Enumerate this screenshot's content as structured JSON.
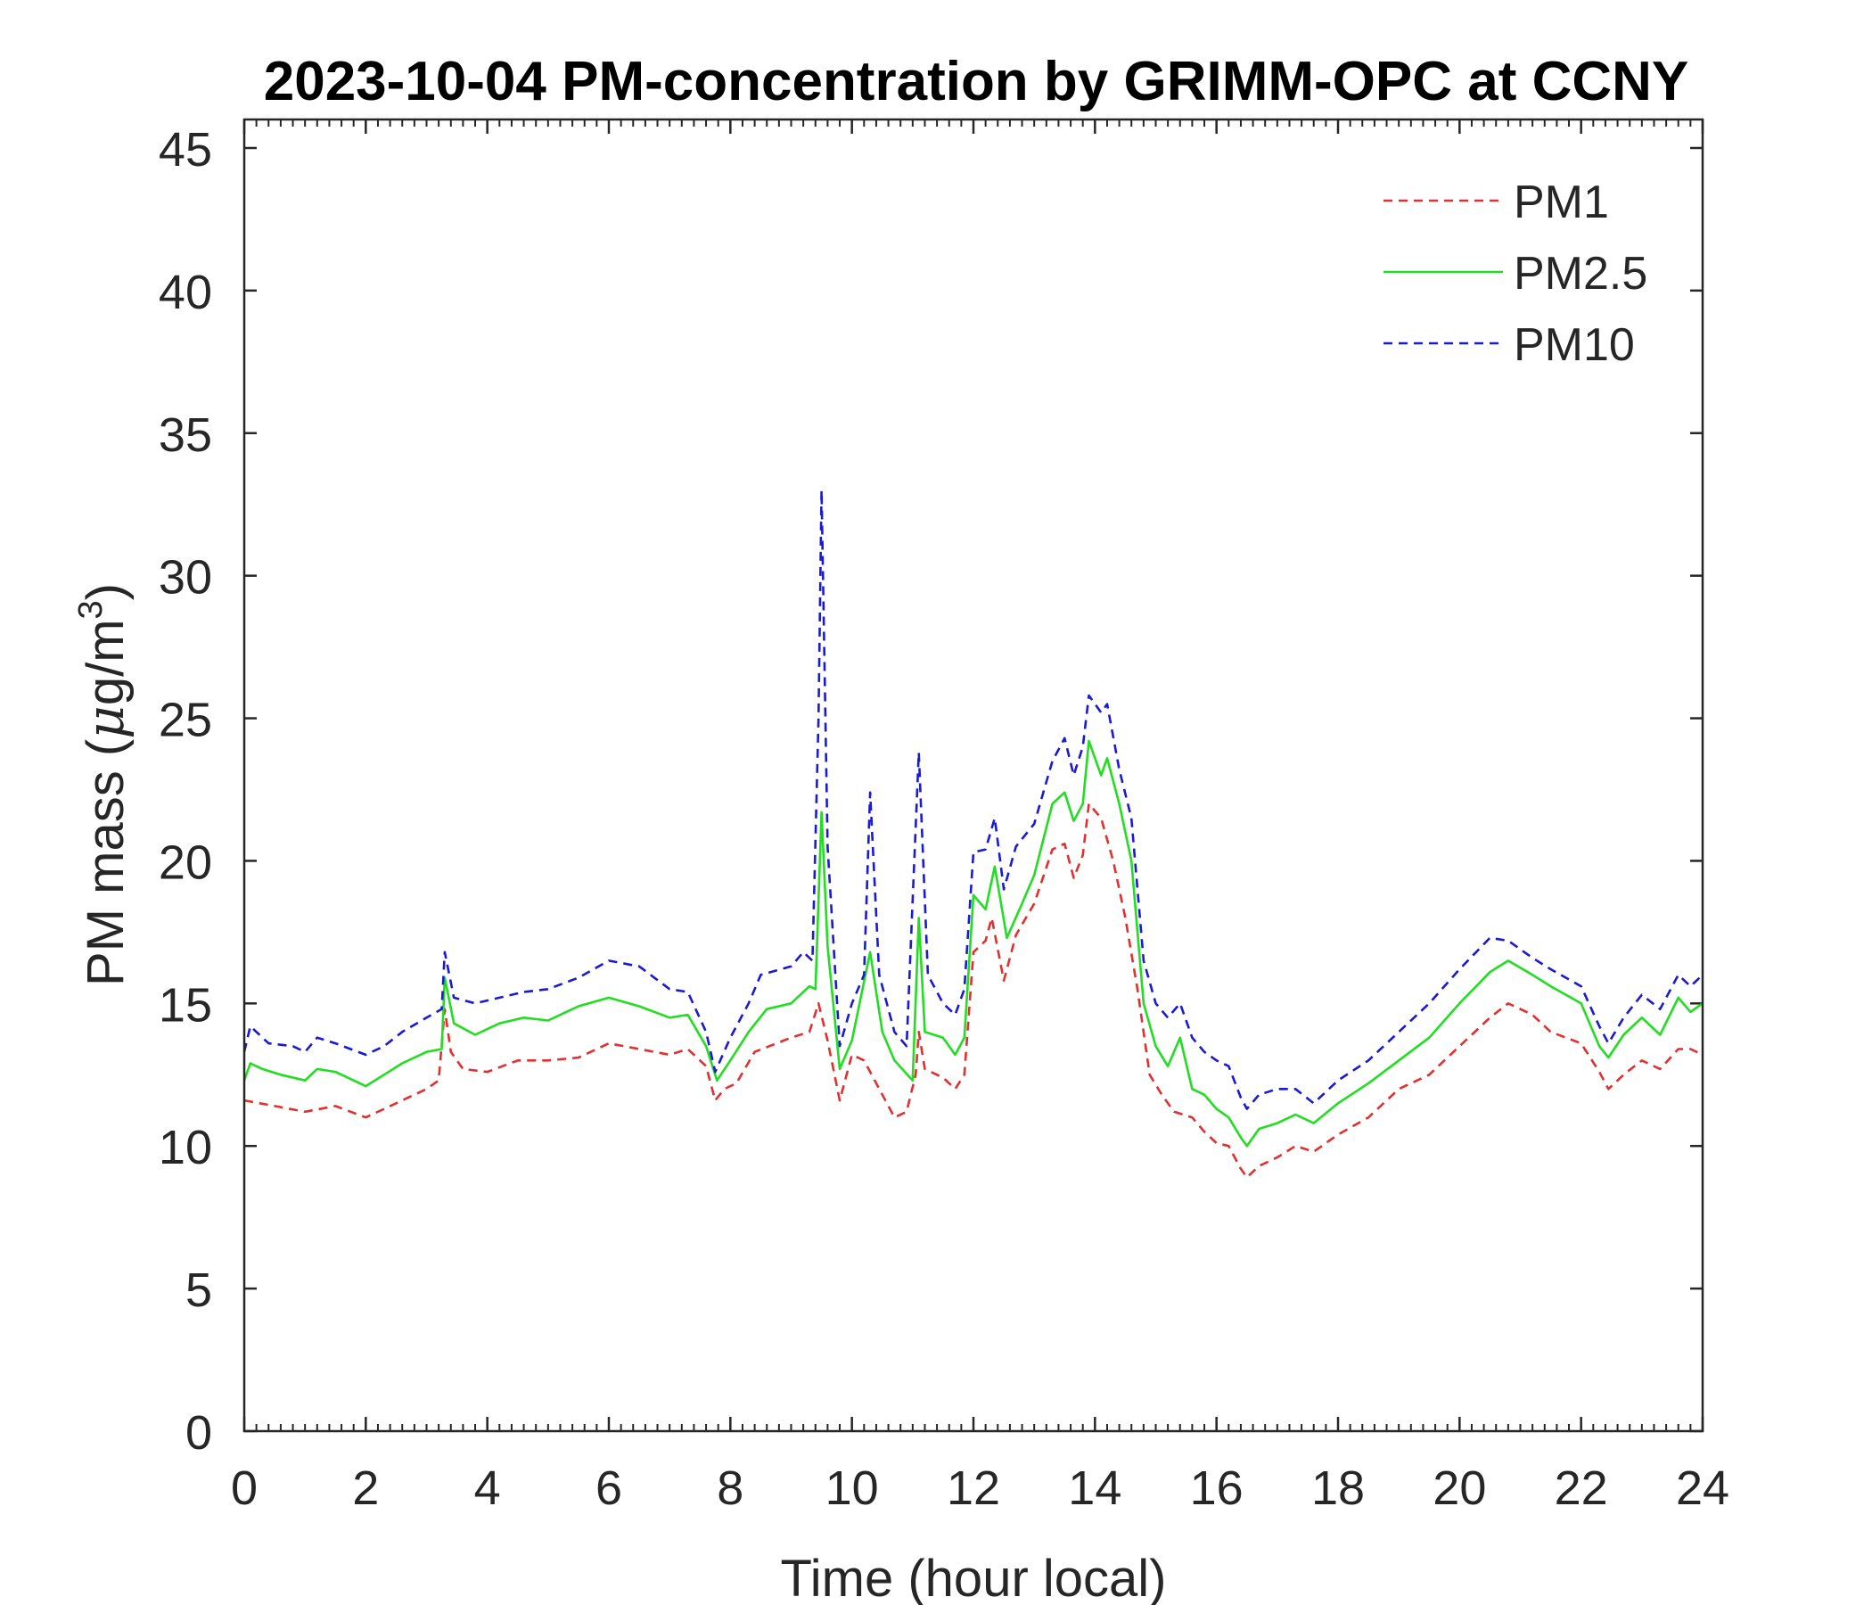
{
  "chart_data": {
    "type": "line",
    "title": "2023-10-04 PM-concentration by GRIMM-OPC at CCNY",
    "xlabel": "Time (hour local)",
    "ylabel_prefix": "PM mass (",
    "ylabel_mu": "μ",
    "ylabel_unit": "g/m",
    "ylabel_sup": "3",
    "ylabel_suffix": ")",
    "xlim": [
      0,
      24
    ],
    "ylim": [
      0,
      46
    ],
    "xticks": [
      0,
      2,
      4,
      6,
      8,
      10,
      12,
      14,
      16,
      18,
      20,
      22,
      24
    ],
    "yticks": [
      0,
      5,
      10,
      15,
      20,
      25,
      30,
      35,
      40,
      45
    ],
    "x_minor_step": 0.2,
    "legend_position": "top-right",
    "series": [
      {
        "name": "PM1",
        "color": "#e03030",
        "style": "dashed",
        "points": [
          [
            0,
            11.6
          ],
          [
            0.5,
            11.4
          ],
          [
            1,
            11.2
          ],
          [
            1.5,
            11.4
          ],
          [
            2,
            11.0
          ],
          [
            2.5,
            11.5
          ],
          [
            3,
            12.0
          ],
          [
            3.2,
            12.3
          ],
          [
            3.3,
            14.8
          ],
          [
            3.4,
            13.3
          ],
          [
            3.6,
            12.7
          ],
          [
            4,
            12.6
          ],
          [
            4.5,
            13.0
          ],
          [
            5,
            13.0
          ],
          [
            5.5,
            13.1
          ],
          [
            6,
            13.6
          ],
          [
            6.5,
            13.4
          ],
          [
            7,
            13.2
          ],
          [
            7.3,
            13.4
          ],
          [
            7.6,
            12.8
          ],
          [
            7.75,
            11.6
          ],
          [
            7.9,
            12.0
          ],
          [
            8.1,
            12.2
          ],
          [
            8.4,
            13.3
          ],
          [
            9,
            13.8
          ],
          [
            9.3,
            14.0
          ],
          [
            9.45,
            15.0
          ],
          [
            9.6,
            13.7
          ],
          [
            9.8,
            11.6
          ],
          [
            10,
            13.2
          ],
          [
            10.2,
            13.0
          ],
          [
            10.5,
            11.8
          ],
          [
            10.7,
            11.0
          ],
          [
            10.9,
            11.2
          ],
          [
            11.05,
            12.5
          ],
          [
            11.1,
            14.0
          ],
          [
            11.2,
            12.7
          ],
          [
            11.5,
            12.4
          ],
          [
            11.7,
            12.0
          ],
          [
            11.85,
            12.5
          ],
          [
            12,
            16.8
          ],
          [
            12.2,
            17.2
          ],
          [
            12.3,
            18.0
          ],
          [
            12.5,
            15.8
          ],
          [
            12.7,
            17.4
          ],
          [
            13,
            18.5
          ],
          [
            13.3,
            20.4
          ],
          [
            13.5,
            20.6
          ],
          [
            13.65,
            19.4
          ],
          [
            13.8,
            20.2
          ],
          [
            13.9,
            22.0
          ],
          [
            14.1,
            21.5
          ],
          [
            14.3,
            20.0
          ],
          [
            14.5,
            18.0
          ],
          [
            14.7,
            15.5
          ],
          [
            14.9,
            12.5
          ],
          [
            15.1,
            11.8
          ],
          [
            15.3,
            11.2
          ],
          [
            15.6,
            11.0
          ],
          [
            15.8,
            10.5
          ],
          [
            16,
            10.1
          ],
          [
            16.2,
            10.0
          ],
          [
            16.4,
            9.2
          ],
          [
            16.5,
            8.9
          ],
          [
            16.7,
            9.3
          ],
          [
            17,
            9.6
          ],
          [
            17.3,
            10.0
          ],
          [
            17.6,
            9.8
          ],
          [
            18,
            10.4
          ],
          [
            18.5,
            11.0
          ],
          [
            19,
            12.0
          ],
          [
            19.5,
            12.5
          ],
          [
            20,
            13.5
          ],
          [
            20.5,
            14.5
          ],
          [
            20.8,
            15.0
          ],
          [
            21.2,
            14.6
          ],
          [
            21.5,
            14.0
          ],
          [
            22,
            13.6
          ],
          [
            22.3,
            12.6
          ],
          [
            22.45,
            12.0
          ],
          [
            22.7,
            12.5
          ],
          [
            23,
            13.0
          ],
          [
            23.3,
            12.7
          ],
          [
            23.6,
            13.4
          ],
          [
            23.8,
            13.4
          ],
          [
            24,
            13.2
          ]
        ]
      },
      {
        "name": "PM2.5",
        "color": "#22dd22",
        "style": "solid",
        "points": [
          [
            0,
            12.3
          ],
          [
            0.1,
            12.9
          ],
          [
            0.3,
            12.7
          ],
          [
            0.6,
            12.5
          ],
          [
            1,
            12.3
          ],
          [
            1.2,
            12.7
          ],
          [
            1.5,
            12.6
          ],
          [
            2,
            12.1
          ],
          [
            2.3,
            12.5
          ],
          [
            2.6,
            12.9
          ],
          [
            3,
            13.3
          ],
          [
            3.25,
            13.4
          ],
          [
            3.3,
            15.9
          ],
          [
            3.45,
            14.3
          ],
          [
            3.8,
            13.9
          ],
          [
            4.2,
            14.3
          ],
          [
            4.6,
            14.5
          ],
          [
            5,
            14.4
          ],
          [
            5.5,
            14.9
          ],
          [
            6,
            15.2
          ],
          [
            6.5,
            14.9
          ],
          [
            7,
            14.5
          ],
          [
            7.3,
            14.6
          ],
          [
            7.6,
            13.5
          ],
          [
            7.78,
            12.3
          ],
          [
            8,
            13.0
          ],
          [
            8.3,
            14.0
          ],
          [
            8.6,
            14.8
          ],
          [
            9,
            15.0
          ],
          [
            9.3,
            15.6
          ],
          [
            9.4,
            15.5
          ],
          [
            9.5,
            21.7
          ],
          [
            9.6,
            17.0
          ],
          [
            9.8,
            12.7
          ],
          [
            10,
            13.7
          ],
          [
            10.3,
            16.8
          ],
          [
            10.5,
            14.0
          ],
          [
            10.7,
            13.0
          ],
          [
            11,
            12.3
          ],
          [
            11.1,
            18.0
          ],
          [
            11.2,
            14.0
          ],
          [
            11.5,
            13.8
          ],
          [
            11.7,
            13.2
          ],
          [
            11.85,
            13.8
          ],
          [
            12,
            18.8
          ],
          [
            12.2,
            18.3
          ],
          [
            12.35,
            19.8
          ],
          [
            12.55,
            17.3
          ],
          [
            12.8,
            18.5
          ],
          [
            13,
            19.5
          ],
          [
            13.3,
            22.0
          ],
          [
            13.5,
            22.4
          ],
          [
            13.65,
            21.4
          ],
          [
            13.8,
            22.0
          ],
          [
            13.9,
            24.2
          ],
          [
            14.1,
            23.0
          ],
          [
            14.2,
            23.6
          ],
          [
            14.4,
            22.0
          ],
          [
            14.6,
            20.0
          ],
          [
            14.8,
            15.0
          ],
          [
            15,
            13.5
          ],
          [
            15.2,
            12.8
          ],
          [
            15.4,
            13.8
          ],
          [
            15.6,
            12.0
          ],
          [
            15.8,
            11.8
          ],
          [
            16,
            11.3
          ],
          [
            16.2,
            11.0
          ],
          [
            16.4,
            10.3
          ],
          [
            16.5,
            10.0
          ],
          [
            16.7,
            10.6
          ],
          [
            17,
            10.8
          ],
          [
            17.3,
            11.1
          ],
          [
            17.6,
            10.8
          ],
          [
            18,
            11.5
          ],
          [
            18.5,
            12.2
          ],
          [
            19,
            13.0
          ],
          [
            19.5,
            13.8
          ],
          [
            20,
            15.0
          ],
          [
            20.5,
            16.1
          ],
          [
            20.8,
            16.5
          ],
          [
            21.2,
            16.0
          ],
          [
            21.5,
            15.6
          ],
          [
            22,
            15.0
          ],
          [
            22.3,
            13.5
          ],
          [
            22.45,
            13.1
          ],
          [
            22.7,
            13.9
          ],
          [
            23,
            14.5
          ],
          [
            23.3,
            13.9
          ],
          [
            23.6,
            15.2
          ],
          [
            23.8,
            14.7
          ],
          [
            24,
            15.0
          ]
        ]
      },
      {
        "name": "PM10",
        "color": "#1a1ad0",
        "style": "dashed",
        "points": [
          [
            0,
            13.3
          ],
          [
            0.1,
            14.2
          ],
          [
            0.4,
            13.6
          ],
          [
            0.8,
            13.5
          ],
          [
            1,
            13.3
          ],
          [
            1.2,
            13.8
          ],
          [
            1.5,
            13.6
          ],
          [
            2,
            13.2
          ],
          [
            2.3,
            13.5
          ],
          [
            2.6,
            14.0
          ],
          [
            3,
            14.5
          ],
          [
            3.25,
            14.8
          ],
          [
            3.3,
            16.8
          ],
          [
            3.45,
            15.2
          ],
          [
            3.8,
            15.0
          ],
          [
            4.2,
            15.2
          ],
          [
            4.6,
            15.4
          ],
          [
            5,
            15.5
          ],
          [
            5.5,
            15.9
          ],
          [
            6,
            16.5
          ],
          [
            6.5,
            16.3
          ],
          [
            7,
            15.5
          ],
          [
            7.3,
            15.4
          ],
          [
            7.6,
            14.0
          ],
          [
            7.75,
            12.6
          ],
          [
            8,
            13.8
          ],
          [
            8.3,
            15.0
          ],
          [
            8.5,
            16.0
          ],
          [
            9,
            16.3
          ],
          [
            9.2,
            16.8
          ],
          [
            9.35,
            16.5
          ],
          [
            9.45,
            25.0
          ],
          [
            9.5,
            33.0
          ],
          [
            9.6,
            20.5
          ],
          [
            9.8,
            13.5
          ],
          [
            10,
            15.0
          ],
          [
            10.2,
            16.0
          ],
          [
            10.3,
            22.4
          ],
          [
            10.45,
            16.0
          ],
          [
            10.7,
            14.0
          ],
          [
            10.9,
            13.5
          ],
          [
            11.1,
            23.8
          ],
          [
            11.25,
            16.0
          ],
          [
            11.5,
            15.0
          ],
          [
            11.7,
            14.6
          ],
          [
            11.85,
            15.5
          ],
          [
            12,
            20.3
          ],
          [
            12.2,
            20.4
          ],
          [
            12.35,
            21.5
          ],
          [
            12.5,
            19.0
          ],
          [
            12.7,
            20.5
          ],
          [
            13,
            21.3
          ],
          [
            13.3,
            23.5
          ],
          [
            13.5,
            24.3
          ],
          [
            13.65,
            23.0
          ],
          [
            13.8,
            24.0
          ],
          [
            13.9,
            25.8
          ],
          [
            14.1,
            25.2
          ],
          [
            14.2,
            25.5
          ],
          [
            14.4,
            23.2
          ],
          [
            14.6,
            21.5
          ],
          [
            14.8,
            16.5
          ],
          [
            15,
            15.0
          ],
          [
            15.2,
            14.5
          ],
          [
            15.4,
            15.0
          ],
          [
            15.6,
            13.8
          ],
          [
            15.8,
            13.3
          ],
          [
            16,
            13.0
          ],
          [
            16.2,
            12.8
          ],
          [
            16.4,
            11.7
          ],
          [
            16.5,
            11.3
          ],
          [
            16.7,
            11.8
          ],
          [
            17,
            12.0
          ],
          [
            17.3,
            12.0
          ],
          [
            17.6,
            11.5
          ],
          [
            18,
            12.3
          ],
          [
            18.5,
            13.0
          ],
          [
            19,
            14.0
          ],
          [
            19.5,
            15.0
          ],
          [
            20,
            16.2
          ],
          [
            20.5,
            17.3
          ],
          [
            20.8,
            17.2
          ],
          [
            21.2,
            16.6
          ],
          [
            21.5,
            16.2
          ],
          [
            22,
            15.6
          ],
          [
            22.3,
            14.2
          ],
          [
            22.45,
            13.6
          ],
          [
            22.7,
            14.5
          ],
          [
            23,
            15.3
          ],
          [
            23.3,
            14.8
          ],
          [
            23.6,
            16.0
          ],
          [
            23.8,
            15.6
          ],
          [
            24,
            16.0
          ]
        ]
      }
    ]
  }
}
